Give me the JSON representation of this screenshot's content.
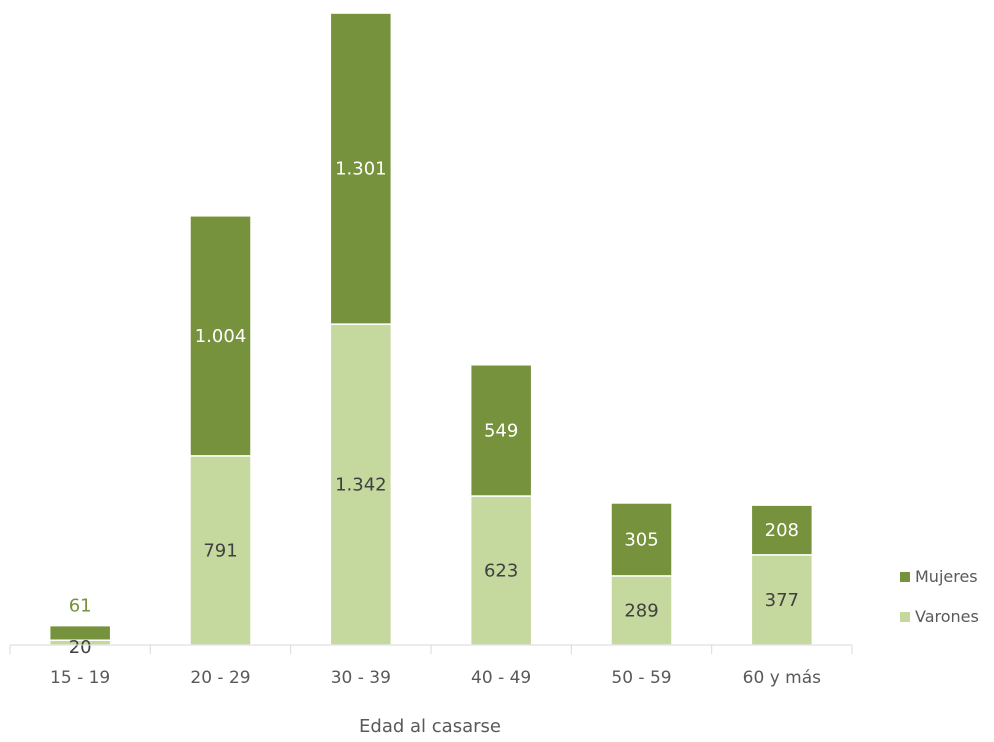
{
  "chart_data": {
    "type": "bar",
    "stacked": true,
    "categories": [
      "15 - 19",
      "20 - 29",
      "30 - 39",
      "40 - 49",
      "50 - 59",
      "60 y más"
    ],
    "series": [
      {
        "name": "Varones",
        "values": [
          20,
          791,
          1342,
          623,
          289,
          377
        ],
        "labels": [
          "20",
          "791",
          "1.342",
          "623",
          "289",
          "377"
        ],
        "color": "#c5d89e"
      },
      {
        "name": "Mujeres",
        "values": [
          61,
          1004,
          1301,
          549,
          305,
          208
        ],
        "labels": [
          "61",
          "1.004",
          "1.301",
          "549",
          "305",
          "208"
        ],
        "color": "#76923c"
      }
    ],
    "title": "",
    "xlabel": "Edad al casarse",
    "ylabel": "",
    "ylim": [
      0,
      2660
    ],
    "grid": false,
    "legend": "right",
    "label_colors": {
      "on_dark": "#ffffff",
      "on_light": "#404040",
      "outside": "#76923c"
    }
  }
}
